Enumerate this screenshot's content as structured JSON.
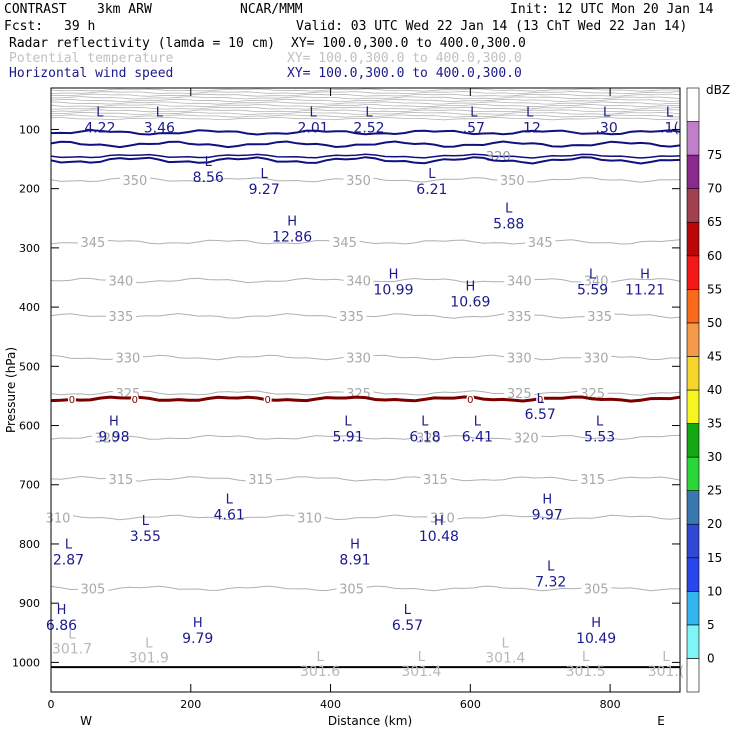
{
  "header": {
    "program": "CONTRAST",
    "model": "3km ARW",
    "org": "NCAR/MMM",
    "init": "Init: 12 UTC Mon 20 Jan 14",
    "fcst_label": "Fcst:",
    "fcst_value": "39 h",
    "valid": "Valid: 03 UTC Wed 22 Jan 14 (13 ChT Wed 22 Jan 14)",
    "fields": [
      {
        "name": "Radar reflectivity (lamda = 10 cm)",
        "xy": "XY= 100.0,300.0 to 400.0,300.0",
        "color": "#000000"
      },
      {
        "name": "Potential temperature",
        "xy": "XY= 100.0,300.0 to 400.0,300.0",
        "color": "#c0c0c0"
      },
      {
        "name": "Horizontal wind speed",
        "xy": "XY= 100.0,300.0 to 400.0,300.0",
        "color": "#1a1a8c"
      }
    ]
  },
  "chart_data": {
    "type": "contour",
    "xlabel": "Distance (km)",
    "ylabel": "Pressure (hPa)",
    "xlim": [
      0,
      900
    ],
    "ylim": [
      1050,
      30
    ],
    "xticks": [
      0,
      200,
      400,
      600,
      800
    ],
    "yticks": [
      100,
      200,
      300,
      400,
      500,
      600,
      700,
      800,
      900,
      1000
    ],
    "x_end_labels": {
      "left": "W",
      "right": "E"
    },
    "colorbar": {
      "title": "dBZ",
      "levels": [
        0,
        5,
        10,
        15,
        20,
        25,
        30,
        35,
        40,
        45,
        50,
        55,
        60,
        65,
        70,
        75
      ],
      "colors": [
        "#ffffff",
        "#7ff5f5",
        "#33b5f0",
        "#2a45e8",
        "#3049d4",
        "#3c78b0",
        "#2bd63b",
        "#14a814",
        "#f5f522",
        "#f5d52b",
        "#f59a4a",
        "#fa6a1a",
        "#f51818",
        "#b80808",
        "#a04050",
        "#8a2a8c",
        "#c080c8",
        "#ffffff"
      ]
    },
    "theta_contours": [
      {
        "level": 350,
        "p": 185,
        "label_x": [
          120,
          440,
          660
        ]
      },
      {
        "level": 345,
        "p": 290,
        "label_x": [
          60,
          420,
          700
        ]
      },
      {
        "level": 340,
        "p": 355,
        "label_x": [
          100,
          440,
          670,
          780
        ]
      },
      {
        "level": 335,
        "p": 415,
        "label_x": [
          100,
          430,
          670,
          785
        ]
      },
      {
        "level": 330,
        "p": 485,
        "label_x": [
          110,
          440,
          670,
          780
        ]
      },
      {
        "level": 325,
        "p": 545,
        "label_x": [
          110,
          440,
          670,
          775
        ]
      },
      {
        "level": 320,
        "p": 620,
        "label_x": [
          80,
          540,
          680
        ]
      },
      {
        "level": 315,
        "p": 690,
        "label_x": [
          100,
          300,
          550,
          775
        ]
      },
      {
        "level": 310,
        "p": 755,
        "label_x": [
          10,
          370,
          560
        ]
      },
      {
        "level": 305,
        "p": 875,
        "label_x": [
          60,
          430,
          780
        ]
      }
    ],
    "wind_contours": [
      {
        "label": "320",
        "p": 145
      },
      {
        "p": 105
      },
      {
        "p": 125
      },
      {
        "p": 152
      }
    ],
    "freezing_level": {
      "label": "0",
      "p": 555,
      "label_x": [
        30,
        120,
        310,
        600,
        700
      ],
      "color": "#7a0000"
    },
    "extrema": [
      {
        "type": "L",
        "x": 70,
        "p": 78,
        "value": "4.22"
      },
      {
        "type": "L",
        "x": 155,
        "p": 78,
        "value": "3.46"
      },
      {
        "type": "L",
        "x": 375,
        "p": 78,
        "value": "2.01"
      },
      {
        "type": "L",
        "x": 455,
        "p": 78,
        "value": "2.52"
      },
      {
        "type": "L",
        "x": 605,
        "p": 78,
        "value": ".57"
      },
      {
        "type": "L",
        "x": 685,
        "p": 78,
        "value": ".12"
      },
      {
        "type": "L",
        "x": 795,
        "p": 78,
        "value": ".30"
      },
      {
        "type": "L",
        "x": 885,
        "p": 78,
        "value": ".1("
      },
      {
        "type": "L",
        "x": 225,
        "p": 162,
        "value": "8.56"
      },
      {
        "type": "L",
        "x": 305,
        "p": 182,
        "value": "9.27"
      },
      {
        "type": "L",
        "x": 545,
        "p": 182,
        "value": "6.21"
      },
      {
        "type": "L",
        "x": 655,
        "p": 240,
        "value": "5.88"
      },
      {
        "type": "H",
        "x": 345,
        "p": 262,
        "value": "12.86"
      },
      {
        "type": "H",
        "x": 490,
        "p": 352,
        "value": "10.99"
      },
      {
        "type": "L",
        "x": 775,
        "p": 352,
        "value": "5.59"
      },
      {
        "type": "H",
        "x": 850,
        "p": 352,
        "value": "11.21"
      },
      {
        "type": "H",
        "x": 600,
        "p": 372,
        "value": "10.69"
      },
      {
        "type": "L",
        "x": 700,
        "p": 562,
        "value": "6.57"
      },
      {
        "type": "H",
        "x": 90,
        "p": 600,
        "value": "9.98"
      },
      {
        "type": "L",
        "x": 425,
        "p": 600,
        "value": "5.91"
      },
      {
        "type": "L",
        "x": 535,
        "p": 600,
        "value": "6.18"
      },
      {
        "type": "L",
        "x": 610,
        "p": 600,
        "value": "6.41"
      },
      {
        "type": "L",
        "x": 785,
        "p": 600,
        "value": "5.53"
      },
      {
        "type": "L",
        "x": 255,
        "p": 732,
        "value": "4.61"
      },
      {
        "type": "H",
        "x": 710,
        "p": 732,
        "value": "9.97"
      },
      {
        "type": "L",
        "x": 135,
        "p": 768,
        "value": "3.55"
      },
      {
        "type": "H",
        "x": 555,
        "p": 768,
        "value": "10.48"
      },
      {
        "type": "L",
        "x": 25,
        "p": 808,
        "value": "2.87"
      },
      {
        "type": "H",
        "x": 435,
        "p": 808,
        "value": "8.91"
      },
      {
        "type": "L",
        "x": 715,
        "p": 845,
        "value": "7.32"
      },
      {
        "type": "H",
        "x": 15,
        "p": 918,
        "value": "6.86"
      },
      {
        "type": "L",
        "x": 510,
        "p": 918,
        "value": "6.57"
      },
      {
        "type": "H",
        "x": 210,
        "p": 940,
        "value": "9.79"
      },
      {
        "type": "H",
        "x": 780,
        "p": 940,
        "value": "10.49"
      }
    ],
    "surface_extrema": [
      {
        "type": "L",
        "x": 30,
        "p": 960,
        "value": "301.7"
      },
      {
        "type": "L",
        "x": 140,
        "p": 975,
        "value": "301.9"
      },
      {
        "type": "L",
        "x": 385,
        "p": 998,
        "value": "301.6"
      },
      {
        "type": "L",
        "x": 530,
        "p": 998,
        "value": "301.4"
      },
      {
        "type": "L",
        "x": 650,
        "p": 975,
        "value": "301.4"
      },
      {
        "type": "L",
        "x": 765,
        "p": 998,
        "value": "301.5"
      },
      {
        "type": "L",
        "x": 880,
        "p": 998,
        "value": "301.("
      }
    ],
    "ground_level_p": 1008
  }
}
